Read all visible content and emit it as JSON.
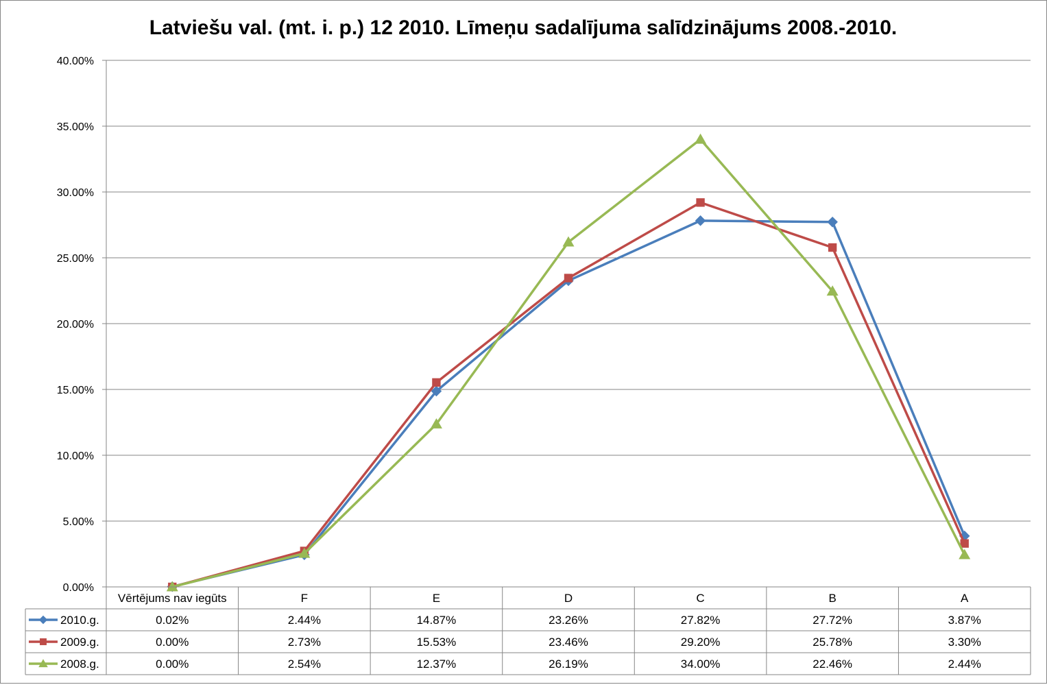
{
  "chart_data": {
    "type": "line",
    "title": "Latviešu val. (mt. i. p.) 12 2010. Līmeņu sadalījuma salīdzinājums 2008.-2010.",
    "categories": [
      "Vērtējums nav iegūts",
      "F",
      "E",
      "D",
      "C",
      "B",
      "A"
    ],
    "ylim": [
      0,
      40
    ],
    "yticks": [
      "0.00%",
      "5.00%",
      "10.00%",
      "15.00%",
      "20.00%",
      "25.00%",
      "30.00%",
      "35.00%",
      "40.00%"
    ],
    "grid": true,
    "legend_placement": "data-table",
    "series": [
      {
        "name": "2010.g.",
        "color": "#4a7ebb",
        "marker": "diamond",
        "values": [
          0.02,
          2.44,
          14.87,
          23.26,
          27.82,
          27.72,
          3.87
        ],
        "labels": [
          "0.02%",
          "2.44%",
          "14.87%",
          "23.26%",
          "27.82%",
          "27.72%",
          "3.87%"
        ]
      },
      {
        "name": "2009.g.",
        "color": "#be4b48",
        "marker": "square",
        "values": [
          0.0,
          2.73,
          15.53,
          23.46,
          29.2,
          25.78,
          3.3
        ],
        "labels": [
          "0.00%",
          "2.73%",
          "15.53%",
          "23.46%",
          "29.20%",
          "25.78%",
          "3.30%"
        ]
      },
      {
        "name": "2008.g.",
        "color": "#98b954",
        "marker": "triangle",
        "values": [
          0.0,
          2.54,
          12.37,
          26.19,
          34.0,
          22.46,
          2.44
        ],
        "labels": [
          "0.00%",
          "2.54%",
          "12.37%",
          "26.19%",
          "34.00%",
          "22.46%",
          "2.44%"
        ]
      }
    ]
  }
}
